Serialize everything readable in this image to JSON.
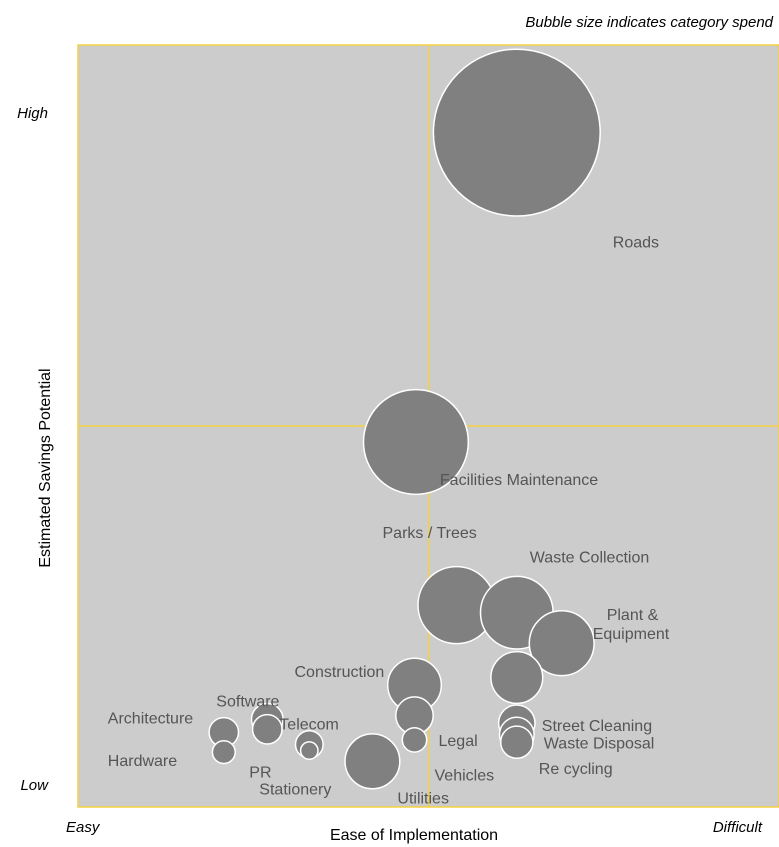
{
  "chart_data": {
    "type": "bubble",
    "note": "Bubble size indicates category spend",
    "xlabel": "Ease of Implementation",
    "ylabel": "Estimated Savings Potential",
    "x_tick_labels": {
      "low": "Easy",
      "high": "Difficult"
    },
    "y_tick_labels": {
      "low": "Low",
      "high": "High"
    },
    "xlim": [
      0,
      10
    ],
    "ylim": [
      0,
      10
    ],
    "grid": false,
    "quadrant_lines": {
      "x": 5.0,
      "y": 5.0
    },
    "colors": {
      "plot_bg": "#cccccc",
      "bubble": "#808080",
      "bubble_stroke": "#ffffff",
      "quadrant_line": "#f5d142",
      "label": "#555555"
    },
    "points": [
      {
        "label": "Roads",
        "x": 6.26,
        "y": 8.85,
        "size": 6950
      },
      {
        "label": "Facilities Maintenance",
        "x": 4.82,
        "y": 4.79,
        "size": 2750
      },
      {
        "label": "Parks / Trees",
        "x": 5.4,
        "y": 2.65,
        "size": 1480
      },
      {
        "label": "Waste Collection",
        "x": 6.26,
        "y": 2.55,
        "size": 1320
      },
      {
        "label": "Plant & Equipment",
        "x": 6.9,
        "y": 2.15,
        "size": 1050
      },
      {
        "label": "Construction",
        "x": 4.8,
        "y": 1.6,
        "size": 720
      },
      {
        "label": "",
        "x": 6.26,
        "y": 1.7,
        "size": 670
      },
      {
        "label": "Street Cleaning",
        "x": 6.26,
        "y": 1.1,
        "size": 330
      },
      {
        "label": "Waste Disposal",
        "x": 6.26,
        "y": 0.95,
        "size": 300
      },
      {
        "label": "Re cycling",
        "x": 6.26,
        "y": 0.85,
        "size": 260
      },
      {
        "label": "",
        "x": 4.8,
        "y": 1.2,
        "size": 350
      },
      {
        "label": "Legal",
        "x": 4.8,
        "y": 0.88,
        "size": 150
      },
      {
        "label": "Utilities",
        "x": 4.2,
        "y": 0.6,
        "size": 750
      },
      {
        "label": "Software",
        "x": 2.7,
        "y": 1.15,
        "size": 250
      },
      {
        "label": "",
        "x": 2.7,
        "y": 1.02,
        "size": 215
      },
      {
        "label": "Architecture",
        "x": 2.08,
        "y": 0.98,
        "size": 215
      },
      {
        "label": "Hardware",
        "x": 2.08,
        "y": 0.72,
        "size": 130
      },
      {
        "label": "Telecom",
        "x": 3.3,
        "y": 0.82,
        "size": 190
      },
      {
        "label": "PR",
        "x": 3.3,
        "y": 0.74,
        "size": 75
      }
    ],
    "text_labels": [
      {
        "text": "Vehicles",
        "x": 5.3,
        "y": 0.48
      },
      {
        "text": "Stationery",
        "x": 3.3,
        "y": 0.24
      }
    ]
  }
}
